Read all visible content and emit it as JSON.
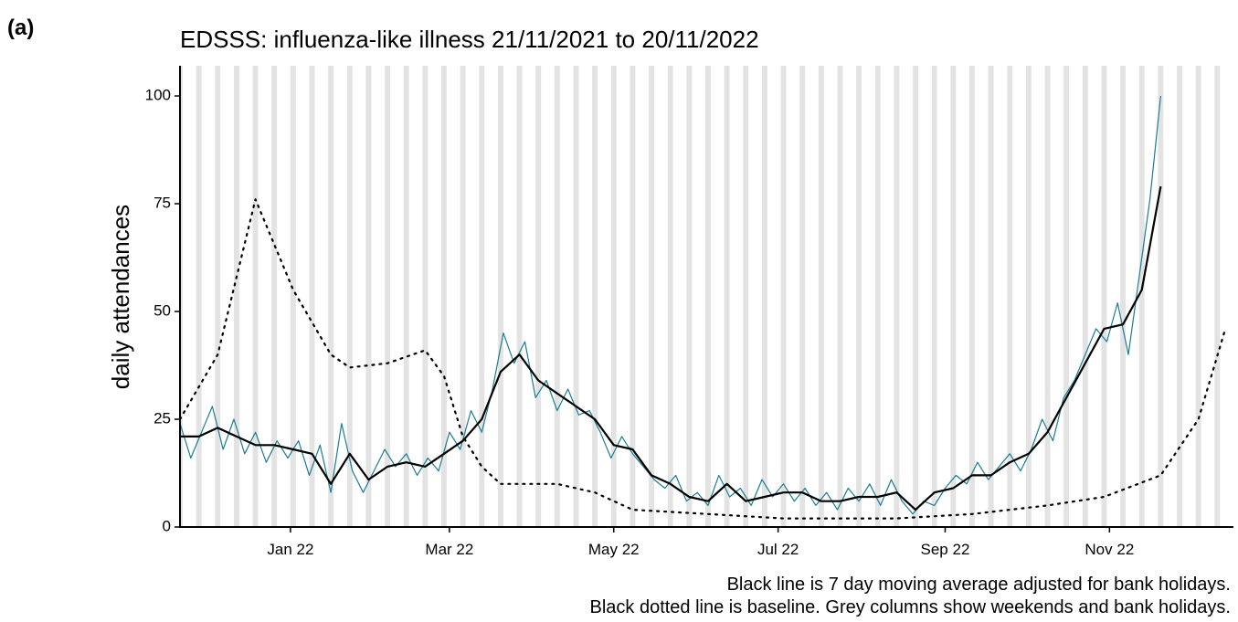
{
  "chart_data": {
    "type": "line",
    "panel_label": "(a)",
    "title": "EDSSS: influenza-like illness 21/11/2021 to 20/11/2022",
    "y_label": "daily attendances",
    "notes": [
      "Black line is 7 day moving average adjusted for bank holidays.",
      "Black dotted line is baseline. Grey columns show weekends and bank holidays."
    ],
    "xlim": [
      0,
      391
    ],
    "xticks": [
      {
        "value": 41,
        "label": "Jan 22"
      },
      {
        "value": 100,
        "label": "Mar 22"
      },
      {
        "value": 161,
        "label": "May 22"
      },
      {
        "value": 222,
        "label": "Jul 22"
      },
      {
        "value": 284,
        "label": "Sep 22"
      },
      {
        "value": 345,
        "label": "Nov 22"
      }
    ],
    "ylim": [
      0,
      107
    ],
    "yticks": [
      0,
      25,
      50,
      75,
      100
    ],
    "weekend_columns_color": "#e3e3e3",
    "series": [
      {
        "color": "#1a7d94",
        "style": "solid",
        "width": 1.2,
        "x": [
          0,
          4,
          8,
          12,
          16,
          20,
          24,
          28,
          32,
          36,
          40,
          44,
          48,
          52,
          56,
          60,
          64,
          68,
          72,
          76,
          80,
          84,
          88,
          92,
          96,
          100,
          104,
          108,
          112,
          116,
          120,
          124,
          128,
          132,
          136,
          140,
          144,
          148,
          152,
          156,
          160,
          164,
          168,
          172,
          176,
          180,
          184,
          188,
          192,
          196,
          200,
          204,
          208,
          212,
          216,
          220,
          224,
          228,
          232,
          236,
          240,
          244,
          248,
          252,
          256,
          260,
          264,
          268,
          272,
          276,
          280,
          284,
          288,
          292,
          296,
          300,
          304,
          308,
          312,
          316,
          320,
          324,
          328,
          332,
          336,
          340,
          344,
          348,
          352,
          356,
          360,
          364
        ],
        "values": [
          24,
          16,
          22,
          28,
          18,
          25,
          17,
          22,
          15,
          20,
          16,
          20,
          12,
          19,
          8,
          24,
          13,
          8,
          13,
          18,
          14,
          17,
          12,
          16,
          13,
          22,
          18,
          27,
          22,
          32,
          45,
          38,
          43,
          30,
          34,
          27,
          32,
          26,
          27,
          22,
          16,
          21,
          17,
          14,
          11,
          9,
          12,
          6,
          8,
          5,
          12,
          7,
          9,
          5,
          11,
          7,
          10,
          6,
          9,
          5,
          8,
          4,
          9,
          6,
          10,
          5,
          11,
          6,
          3,
          6,
          5,
          9,
          12,
          10,
          15,
          11,
          14,
          17,
          13,
          18,
          25,
          20,
          30,
          34,
          40,
          46,
          43,
          52,
          40,
          58,
          76,
          100
        ]
      },
      {
        "color": "#000000",
        "style": "solid",
        "width": 2.2,
        "x": [
          0,
          7,
          14,
          21,
          28,
          35,
          42,
          49,
          56,
          63,
          70,
          77,
          84,
          91,
          98,
          105,
          112,
          119,
          126,
          133,
          140,
          147,
          154,
          161,
          168,
          175,
          182,
          189,
          196,
          203,
          210,
          217,
          224,
          231,
          238,
          245,
          252,
          259,
          266,
          273,
          280,
          287,
          294,
          301,
          308,
          315,
          322,
          329,
          336,
          343,
          350,
          357,
          364
        ],
        "values": [
          21,
          21,
          23,
          21,
          19,
          19,
          18,
          17,
          10,
          17,
          11,
          14,
          15,
          14,
          17,
          20,
          25,
          36,
          40,
          34,
          31,
          28,
          25,
          19,
          18,
          12,
          10,
          7,
          6,
          10,
          6,
          7,
          8,
          8,
          6,
          6,
          7,
          7,
          8,
          4,
          8,
          9,
          12,
          12,
          15,
          17,
          22,
          30,
          38,
          46,
          47,
          55,
          79
        ]
      },
      {
        "color": "#000000",
        "style": "dotted",
        "width": 2.2,
        "x": [
          0,
          14,
          28,
          42,
          56,
          63,
          77,
          91,
          98,
          105,
          112,
          119,
          140,
          154,
          168,
          196,
          224,
          266,
          294,
          322,
          343,
          364,
          378,
          388
        ],
        "values": [
          25,
          40,
          76,
          55,
          40,
          37,
          38,
          41,
          35,
          21,
          14,
          10,
          10,
          8,
          4,
          3,
          2,
          2,
          3,
          5,
          7,
          12,
          25,
          46
        ]
      }
    ]
  }
}
